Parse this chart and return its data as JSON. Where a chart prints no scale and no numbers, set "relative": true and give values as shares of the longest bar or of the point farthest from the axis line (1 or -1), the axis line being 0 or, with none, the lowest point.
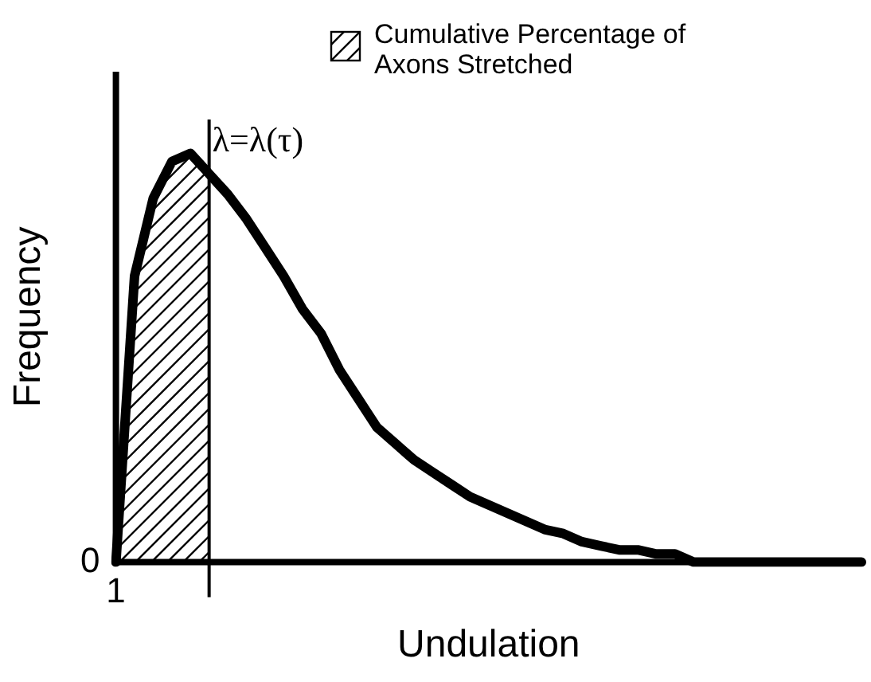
{
  "chart_data": {
    "type": "line",
    "relative": true,
    "xlabel": "Undulation",
    "ylabel": "Frequency",
    "categories": [
      null,
      null,
      null,
      null,
      null,
      null,
      null,
      null,
      null,
      null,
      null,
      null,
      null,
      null,
      null,
      null,
      null,
      null,
      null,
      null,
      null,
      null,
      null,
      null,
      null,
      null,
      null,
      null,
      null,
      null,
      null,
      null,
      null,
      null,
      null,
      null,
      null,
      null,
      null,
      null,
      null
    ],
    "series": [
      {
        "color": "#000000",
        "values": [
          0,
          0.7,
          0.89,
          0.98,
          1.0,
          0.95,
          0.9,
          0.84,
          0.77,
          0.7,
          0.62,
          0.56,
          0.47,
          0.4,
          0.33,
          0.29,
          0.25,
          0.22,
          0.19,
          0.16,
          0.14,
          0.12,
          0.1,
          0.08,
          0.07,
          0.05,
          0.04,
          0.03,
          0.03,
          0.02,
          0.02,
          0,
          0,
          0,
          0,
          0,
          0,
          0,
          0,
          0,
          0
        ]
      }
    ],
    "annotations": [
      "0",
      "1",
      "λ=λ(τ)",
      "Cumulative Percentage of Axons Stretched"
    ],
    "grid": false,
    "marker": "none",
    "line_style": "solid"
  }
}
